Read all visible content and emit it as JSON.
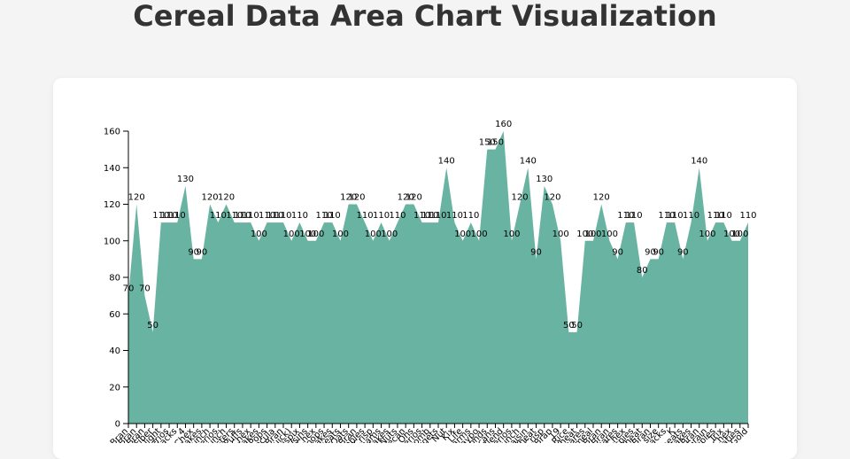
{
  "page": {
    "title": "Cereal Data Area Chart Visualization"
  },
  "colors": {
    "area_fill": "#69b3a2",
    "background": "#f4f4f4",
    "card": "#ffffff"
  },
  "chart_data": {
    "type": "area",
    "title": "Cereal Data Area Chart Visualization",
    "xlabel": "",
    "ylabel": "",
    "ylim": [
      0,
      160
    ],
    "yticks": [
      0,
      20,
      40,
      60,
      80,
      100,
      120,
      140,
      160
    ],
    "grid": false,
    "categories": [
      "100% Bran",
      "100% Natural Bran",
      "All-Bran",
      "All-Bran with Extra Fiber",
      "Almond Delight",
      "Apple Cinnamon Cheerios",
      "Apple Jacks",
      "Basic 4",
      "Bran Chex",
      "Bran Flakes",
      "Cap'n'Crunch",
      "Cheerios",
      "Cinnamon Toast Crunch",
      "Clusters",
      "Cocoa Puffs",
      "Corn Chex",
      "Corn Flakes",
      "Corn Pops",
      "Count Chocula",
      "Cracklin' Oat Bran",
      "Cream of Wheat (Quick)",
      "Crispix",
      "Crispy Wheat & Raisins",
      "Double Chex",
      "Froot Loops",
      "Frosted Flakes",
      "Frosted Mini-Wheats",
      "Fruit & Fibre Dates; Walnuts; and Oats",
      "Fruitful Bran",
      "Fruity Pebbles",
      "Golden Crisp",
      "Golden Grahams",
      "Grape Nuts Flakes",
      "Grape-Nuts",
      "Great Grains Pecan",
      "Honey Graham Ohs",
      "Honey Nut Cheerios",
      "Honey-comb",
      "Just Right Crunchy  Nuggets",
      "Just Right Fruit & Nut",
      "Kix",
      "Life",
      "Lucky Charms",
      "Maypo",
      "Muesli Raisins; Dates; & Almonds",
      "Muesli Raisins; Peaches; & Pecans",
      "Mueslix Crispy Blend",
      "Multi-Grain Cheerios",
      "Nut&Honey Crunch",
      "Nutri-Grain Almond-Raisin",
      "Nutri-grain Wheat",
      "Oatmeal Raisin Crisp",
      "Post Nat. Raisin Bran",
      "Product 19",
      "Puffed Rice",
      "Puffed Wheat",
      "Quaker Oat Squares",
      "Quaker Oatmeal",
      "Raisin Bran",
      "Raisin Nut Bran",
      "Raisin Squares",
      "Rice Chex",
      "Rice Krispies",
      "Shredded Wheat",
      "Shredded Wheat 'n'Bran",
      "Shredded Wheat spoon size",
      "Smacks",
      "Special K",
      "Strawberry Fruit Wheats",
      "Total Corn Flakes",
      "Total Raisin Bran",
      "Total Whole Grain",
      "Triples",
      "Trix",
      "Wheat Chex",
      "Wheaties",
      "Wheaties Honey Gold"
    ],
    "tick_labels": [
      "Bran",
      "Bran",
      "Bran",
      "Fiber",
      "Delight",
      "Cheerios",
      "Jacks",
      "4",
      "Chex",
      "Flakes",
      "Crunch",
      "Cheerios",
      "Crunch",
      "Clusters",
      "Puffs",
      "Chex",
      "Flakes",
      "Pops",
      "Chocula",
      "Bran",
      "(Quick)",
      "Crispix",
      "Raisins",
      "Chex",
      "Loops",
      "Flakes",
      "Wheats",
      "Oats",
      "Bran",
      "Pebbles",
      "Crisp",
      "Grahams",
      "Flakes",
      "Nuts",
      "Pecan",
      "Ohs",
      "Cheerios",
      "Honey-comb",
      "Nuggets",
      "Nut",
      "Kix",
      "Life",
      "Charms",
      "Maypo",
      "Almonds",
      "Pecans",
      "Blend",
      "Cheerios",
      "Crunch",
      "Raisin",
      "Wheat",
      "Crisp",
      "Bran",
      "19",
      "Rice",
      "Wheat",
      "Squares",
      "Oatmeal",
      "Bran",
      "Bran",
      "Squares",
      "Chex",
      "Krispies",
      "Wheat",
      "Bran",
      "size",
      "Smacks",
      "K",
      "Wheats",
      "Flakes",
      "Bran",
      "Grain",
      "Triples",
      "Trix",
      "Chex",
      "Wheaties",
      "Gold"
    ],
    "series": [
      {
        "values": [
          70,
          120,
          70,
          50,
          110,
          110,
          110,
          130,
          90,
          90,
          120,
          110,
          120,
          110,
          110,
          110,
          100,
          110,
          110,
          110,
          100,
          110,
          100,
          100,
          110,
          110,
          100,
          120,
          120,
          110,
          100,
          110,
          100,
          110,
          120,
          120,
          110,
          110,
          110,
          140,
          110,
          100,
          110,
          100,
          150,
          150,
          160,
          100,
          120,
          140,
          90,
          130,
          120,
          100,
          50,
          50,
          100,
          100,
          120,
          100,
          90,
          110,
          110,
          80,
          90,
          90,
          110,
          110,
          90,
          110,
          140,
          100,
          110,
          110,
          100,
          100,
          110
        ]
      }
    ]
  }
}
